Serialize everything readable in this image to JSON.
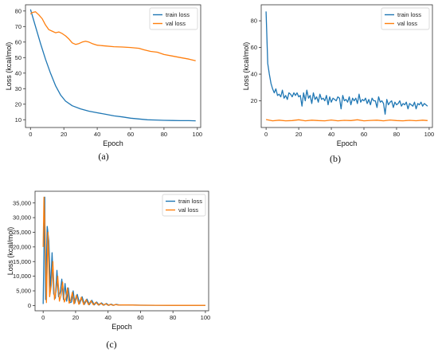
{
  "colors": {
    "train": "#1f77b4",
    "val": "#ff7f0e"
  },
  "chart_data": [
    {
      "type": "line",
      "caption": "(a)",
      "xlabel": "Epoch",
      "ylabel": "Loss (kcal/mol)",
      "xlim": [
        -3,
        102
      ],
      "ylim": [
        5,
        84
      ],
      "xticks": [
        0,
        20,
        40,
        60,
        80,
        100
      ],
      "yticks": [
        10,
        20,
        30,
        40,
        50,
        60,
        70,
        80
      ],
      "legend": "top-right",
      "series": [
        {
          "name": "train loss",
          "x": [
            0,
            3,
            6,
            9,
            12,
            15,
            18,
            21,
            25,
            30,
            35,
            40,
            45,
            50,
            55,
            60,
            65,
            70,
            75,
            80,
            85,
            90,
            95,
            99
          ],
          "y": [
            81,
            70,
            59,
            49,
            40,
            32,
            26,
            22,
            19,
            17,
            15.5,
            14.5,
            13.5,
            12.5,
            11.8,
            11,
            10.5,
            10,
            9.8,
            9.6,
            9.5,
            9.4,
            9.4,
            9.3
          ]
        },
        {
          "name": "val loss",
          "x": [
            0,
            1,
            3,
            5,
            7,
            9,
            11,
            13,
            15,
            17,
            19,
            21,
            23,
            25,
            27,
            29,
            31,
            33,
            35,
            37,
            40,
            45,
            50,
            55,
            60,
            65,
            68,
            72,
            76,
            80,
            85,
            90,
            95,
            99
          ],
          "y": [
            78,
            79,
            79.5,
            77.5,
            75,
            71,
            68,
            67,
            66,
            66.5,
            65.5,
            64,
            62,
            59.5,
            58.5,
            59,
            60,
            60.5,
            60,
            59,
            58,
            57.5,
            57,
            56.8,
            56.5,
            56,
            55,
            54,
            53.5,
            52,
            51,
            50,
            49,
            48
          ]
        }
      ]
    },
    {
      "type": "line",
      "caption": "(b)",
      "xlabel": "Epoch",
      "ylabel": "Loss (kcal/mol)",
      "xlim": [
        -3,
        102
      ],
      "ylim": [
        0,
        92
      ],
      "xticks": [
        0,
        20,
        40,
        60,
        80,
        100
      ],
      "yticks": [
        20,
        40,
        60,
        80
      ],
      "legend": "top-right",
      "series": [
        {
          "name": "train loss",
          "x": [
            0,
            1,
            2,
            3,
            4,
            5,
            6,
            7,
            8,
            9,
            10,
            11,
            12,
            13,
            14,
            15,
            16,
            17,
            18,
            19,
            20,
            21,
            22,
            23,
            24,
            25,
            26,
            27,
            28,
            29,
            30,
            31,
            32,
            33,
            34,
            35,
            36,
            37,
            38,
            39,
            40,
            41,
            42,
            43,
            44,
            45,
            46,
            47,
            48,
            49,
            50,
            51,
            52,
            53,
            54,
            55,
            56,
            57,
            58,
            59,
            60,
            61,
            62,
            63,
            64,
            65,
            66,
            67,
            68,
            69,
            70,
            71,
            72,
            73,
            74,
            75,
            76,
            77,
            78,
            79,
            80,
            81,
            82,
            83,
            84,
            85,
            86,
            87,
            88,
            89,
            90,
            91,
            92,
            93,
            94,
            95,
            96,
            97,
            98,
            99
          ],
          "y": [
            87,
            48,
            40,
            33,
            29,
            26,
            29,
            24,
            25,
            23,
            28,
            22,
            24,
            21,
            26,
            25,
            23,
            26,
            24,
            26,
            23,
            24,
            16,
            26,
            20,
            28,
            22,
            24,
            18,
            26,
            21,
            23,
            19,
            25,
            21,
            22,
            20,
            24,
            17,
            23,
            19,
            22,
            21,
            20,
            23,
            22,
            14,
            24,
            20,
            21,
            19,
            23,
            17,
            22,
            20,
            22,
            18,
            25,
            19,
            21,
            20,
            22,
            18,
            21,
            17,
            22,
            20,
            20,
            15,
            23,
            19,
            20,
            18,
            10,
            21,
            17,
            19,
            20,
            15,
            19,
            17,
            18,
            20,
            16,
            18,
            17,
            19,
            14,
            18,
            17,
            16,
            19,
            14,
            18,
            17,
            19,
            16,
            18,
            17,
            16
          ]
        },
        {
          "name": "val loss",
          "x": [
            0,
            4,
            8,
            12,
            16,
            20,
            24,
            28,
            32,
            36,
            40,
            44,
            48,
            52,
            56,
            60,
            64,
            68,
            72,
            76,
            80,
            84,
            88,
            92,
            96,
            99
          ],
          "y": [
            6,
            5,
            5.5,
            5,
            5.2,
            5.8,
            5,
            5.5,
            5.2,
            5,
            5.6,
            5,
            5.4,
            5.2,
            5.8,
            5,
            5.3,
            5.5,
            5,
            5.6,
            5.2,
            5,
            5.4,
            5.1,
            5.5,
            5.2
          ]
        }
      ]
    },
    {
      "type": "line",
      "caption": "(c)",
      "xlabel": "Epoch",
      "ylabel": "Loss (kcal/mol)",
      "xlim": [
        -5,
        102
      ],
      "ylim": [
        -1800,
        39000
      ],
      "xticks": [
        0,
        20,
        40,
        60,
        80,
        100
      ],
      "yticks": [
        0,
        5000,
        10000,
        15000,
        20000,
        25000,
        30000,
        35000
      ],
      "ytick_labels": [
        "0",
        "5,000",
        "10,000",
        "15,000",
        "20,000",
        "25,000",
        "30,000",
        "35,000"
      ],
      "legend": "top-right",
      "series": [
        {
          "name": "train loss",
          "x": [
            0,
            1,
            1.5,
            2.5,
            3.5,
            4.5,
            5.5,
            6.5,
            7.5,
            8.5,
            9.5,
            10.5,
            11.5,
            12.5,
            13.5,
            14.5,
            15.5,
            16.5,
            17.5,
            18.5,
            19.5,
            21,
            22.5,
            24,
            25.5,
            27,
            28.5,
            30,
            31.5,
            33,
            34.5,
            36,
            37.5,
            39,
            40.5,
            42,
            43.5,
            45,
            47,
            50,
            55,
            60,
            70,
            80,
            90,
            100
          ],
          "y": [
            500,
            37000,
            2000,
            27000,
            22000,
            5000,
            18000,
            4000,
            2500,
            12000,
            3000,
            4500,
            9000,
            2000,
            7500,
            1500,
            6000,
            1000,
            1200,
            5000,
            800,
            3800,
            600,
            3000,
            400,
            2200,
            300,
            1800,
            200,
            1200,
            150,
            900,
            100,
            700,
            60,
            450,
            50,
            400,
            150,
            200,
            150,
            100,
            80,
            60,
            60,
            50
          ]
        },
        {
          "name": "val loss",
          "x": [
            0,
            0.5,
            1.2,
            2,
            3,
            4,
            5,
            6,
            7,
            8,
            9,
            10,
            11,
            12,
            13,
            14,
            15,
            16,
            17,
            18,
            19,
            20.5,
            22,
            23.5,
            25,
            26.5,
            28,
            29.5,
            31,
            32.5,
            34,
            35.5,
            37,
            38.5,
            40,
            41.5,
            43,
            44.5,
            46,
            50,
            55,
            60,
            70,
            80,
            90,
            100
          ],
          "y": [
            20000,
            37000,
            25000,
            1000,
            25000,
            3000,
            7000,
            15000,
            2000,
            5000,
            10000,
            1500,
            3500,
            8000,
            1200,
            2500,
            6000,
            800,
            1800,
            4500,
            500,
            3500,
            400,
            2800,
            300,
            2000,
            250,
            1600,
            200,
            1100,
            150,
            800,
            100,
            600,
            80,
            400,
            60,
            350,
            150,
            200,
            150,
            100,
            80,
            60,
            60,
            50
          ]
        }
      ]
    }
  ]
}
